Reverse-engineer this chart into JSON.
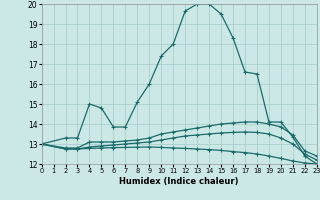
{
  "background_color": "#cce8e6",
  "grid_color": "#aacfcc",
  "line_color": "#1a6b6b",
  "xlabel": "Humidex (Indice chaleur)",
  "xlim": [
    0,
    23
  ],
  "ylim": [
    12,
    20
  ],
  "yticks": [
    12,
    13,
    14,
    15,
    16,
    17,
    18,
    19,
    20
  ],
  "xticks": [
    0,
    1,
    2,
    3,
    4,
    5,
    6,
    7,
    8,
    9,
    10,
    11,
    12,
    13,
    14,
    15,
    16,
    17,
    18,
    19,
    20,
    21,
    22,
    23
  ],
  "series": [
    {
      "x": [
        0,
        2,
        3,
        4,
        5,
        6,
        7,
        8,
        9,
        10,
        11,
        12,
        13,
        14,
        15,
        16,
        17,
        18,
        19,
        20,
        21,
        22,
        23
      ],
      "y": [
        13.0,
        13.3,
        13.3,
        15.0,
        14.8,
        13.85,
        13.85,
        15.1,
        16.0,
        17.4,
        18.0,
        19.65,
        20.0,
        20.0,
        19.5,
        18.3,
        16.6,
        16.5,
        14.1,
        14.1,
        13.35,
        12.4,
        12.0
      ]
    },
    {
      "x": [
        0,
        2,
        3,
        4,
        5,
        6,
        7,
        8,
        9,
        10,
        11,
        12,
        13,
        14,
        15,
        16,
        17,
        18,
        19,
        20,
        21,
        22,
        23
      ],
      "y": [
        13.0,
        12.8,
        12.8,
        13.1,
        13.1,
        13.1,
        13.15,
        13.2,
        13.3,
        13.5,
        13.6,
        13.7,
        13.8,
        13.9,
        14.0,
        14.05,
        14.1,
        14.1,
        14.0,
        13.85,
        13.45,
        12.65,
        12.4
      ]
    },
    {
      "x": [
        0,
        2,
        3,
        4,
        5,
        6,
        7,
        8,
        9,
        10,
        11,
        12,
        13,
        14,
        15,
        16,
        17,
        18,
        19,
        20,
        21,
        22,
        23
      ],
      "y": [
        13.0,
        12.75,
        12.75,
        12.85,
        12.9,
        12.95,
        13.0,
        13.05,
        13.1,
        13.2,
        13.3,
        13.4,
        13.45,
        13.5,
        13.55,
        13.58,
        13.6,
        13.58,
        13.5,
        13.3,
        13.0,
        12.5,
        12.2
      ]
    },
    {
      "x": [
        0,
        2,
        3,
        4,
        5,
        6,
        7,
        8,
        9,
        10,
        11,
        12,
        13,
        14,
        15,
        16,
        17,
        18,
        19,
        20,
        21,
        22,
        23
      ],
      "y": [
        13.0,
        12.75,
        12.75,
        12.78,
        12.8,
        12.82,
        12.83,
        12.84,
        12.85,
        12.83,
        12.8,
        12.78,
        12.75,
        12.72,
        12.68,
        12.62,
        12.57,
        12.5,
        12.4,
        12.28,
        12.15,
        12.05,
        12.0
      ]
    }
  ]
}
